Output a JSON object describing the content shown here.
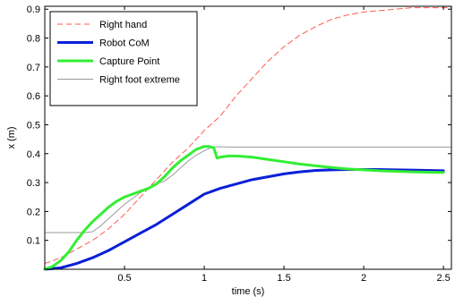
{
  "chart_data": {
    "type": "line",
    "xlabel": "time (s)",
    "ylabel": "x (m)",
    "xlim": [
      0,
      2.55
    ],
    "ylim": [
      0,
      0.91
    ],
    "xticks": [
      0.5,
      1,
      1.5,
      2,
      2.5
    ],
    "xtick_labels": [
      "0.5",
      "1",
      "1.5",
      "2",
      "2.5"
    ],
    "yticks": [
      0.1,
      0.2,
      0.3,
      0.4,
      0.5,
      0.6,
      0.7,
      0.8,
      0.9
    ],
    "ytick_labels": [
      "0.1",
      "0.2",
      "0.3",
      "0.4",
      "0.5",
      "0.6",
      "0.7",
      "0.8",
      "0.9"
    ],
    "grid": false,
    "legend_position": "top-left",
    "series": [
      {
        "name": "Right hand",
        "color": "#ff5a4d",
        "style": "dashed",
        "x": [
          0.0,
          0.1,
          0.2,
          0.3,
          0.4,
          0.5,
          0.6,
          0.7,
          0.8,
          0.9,
          1.0,
          1.1,
          1.2,
          1.3,
          1.4,
          1.5,
          1.6,
          1.7,
          1.8,
          1.9,
          2.0,
          2.1,
          2.2,
          2.3,
          2.4,
          2.55
        ],
        "values": [
          0.02,
          0.04,
          0.07,
          0.1,
          0.14,
          0.19,
          0.25,
          0.31,
          0.37,
          0.42,
          0.48,
          0.53,
          0.6,
          0.66,
          0.72,
          0.77,
          0.81,
          0.84,
          0.865,
          0.88,
          0.89,
          0.895,
          0.9,
          0.905,
          0.905,
          0.905
        ]
      },
      {
        "name": "Robot CoM",
        "color": "#0a1fd8",
        "style": "solid-thick",
        "x": [
          0.0,
          0.1,
          0.2,
          0.3,
          0.4,
          0.5,
          0.6,
          0.7,
          0.8,
          0.9,
          1.0,
          1.1,
          1.2,
          1.3,
          1.4,
          1.5,
          1.6,
          1.7,
          1.8,
          1.9,
          2.0,
          2.1,
          2.2,
          2.3,
          2.4,
          2.5
        ],
        "values": [
          0.0,
          0.005,
          0.02,
          0.04,
          0.065,
          0.095,
          0.125,
          0.155,
          0.19,
          0.225,
          0.26,
          0.28,
          0.295,
          0.31,
          0.32,
          0.33,
          0.337,
          0.342,
          0.344,
          0.345,
          0.345,
          0.345,
          0.344,
          0.343,
          0.342,
          0.341
        ]
      },
      {
        "name": "Capture Point",
        "color": "#33ee33",
        "style": "solid-thick",
        "x": [
          0.0,
          0.05,
          0.1,
          0.15,
          0.2,
          0.25,
          0.3,
          0.35,
          0.4,
          0.45,
          0.5,
          0.55,
          0.6,
          0.65,
          0.7,
          0.75,
          0.8,
          0.85,
          0.9,
          0.95,
          1.0,
          1.03,
          1.06,
          1.08,
          1.1,
          1.15,
          1.2,
          1.3,
          1.4,
          1.5,
          1.6,
          1.7,
          1.8,
          1.9,
          2.0,
          2.1,
          2.2,
          2.3,
          2.4,
          2.5
        ],
        "values": [
          0.0,
          0.01,
          0.03,
          0.06,
          0.1,
          0.135,
          0.165,
          0.19,
          0.215,
          0.235,
          0.25,
          0.26,
          0.27,
          0.28,
          0.295,
          0.32,
          0.35,
          0.375,
          0.395,
          0.415,
          0.425,
          0.425,
          0.42,
          0.385,
          0.388,
          0.392,
          0.392,
          0.388,
          0.38,
          0.372,
          0.364,
          0.358,
          0.352,
          0.347,
          0.344,
          0.341,
          0.339,
          0.337,
          0.336,
          0.335
        ]
      },
      {
        "name": "Right foot extreme",
        "color": "#9a9a9a",
        "style": "solid-thin",
        "x": [
          0.0,
          0.25,
          0.3,
          0.35,
          0.4,
          0.45,
          0.5,
          0.55,
          0.6,
          0.65,
          0.7,
          0.75,
          0.8,
          0.85,
          0.9,
          0.95,
          1.0,
          1.05,
          1.1,
          1.15,
          2.55
        ],
        "values": [
          0.127,
          0.127,
          0.13,
          0.15,
          0.175,
          0.2,
          0.225,
          0.245,
          0.265,
          0.28,
          0.295,
          0.305,
          0.325,
          0.35,
          0.375,
          0.395,
          0.41,
          0.423,
          0.424,
          0.423,
          0.423
        ]
      }
    ]
  }
}
